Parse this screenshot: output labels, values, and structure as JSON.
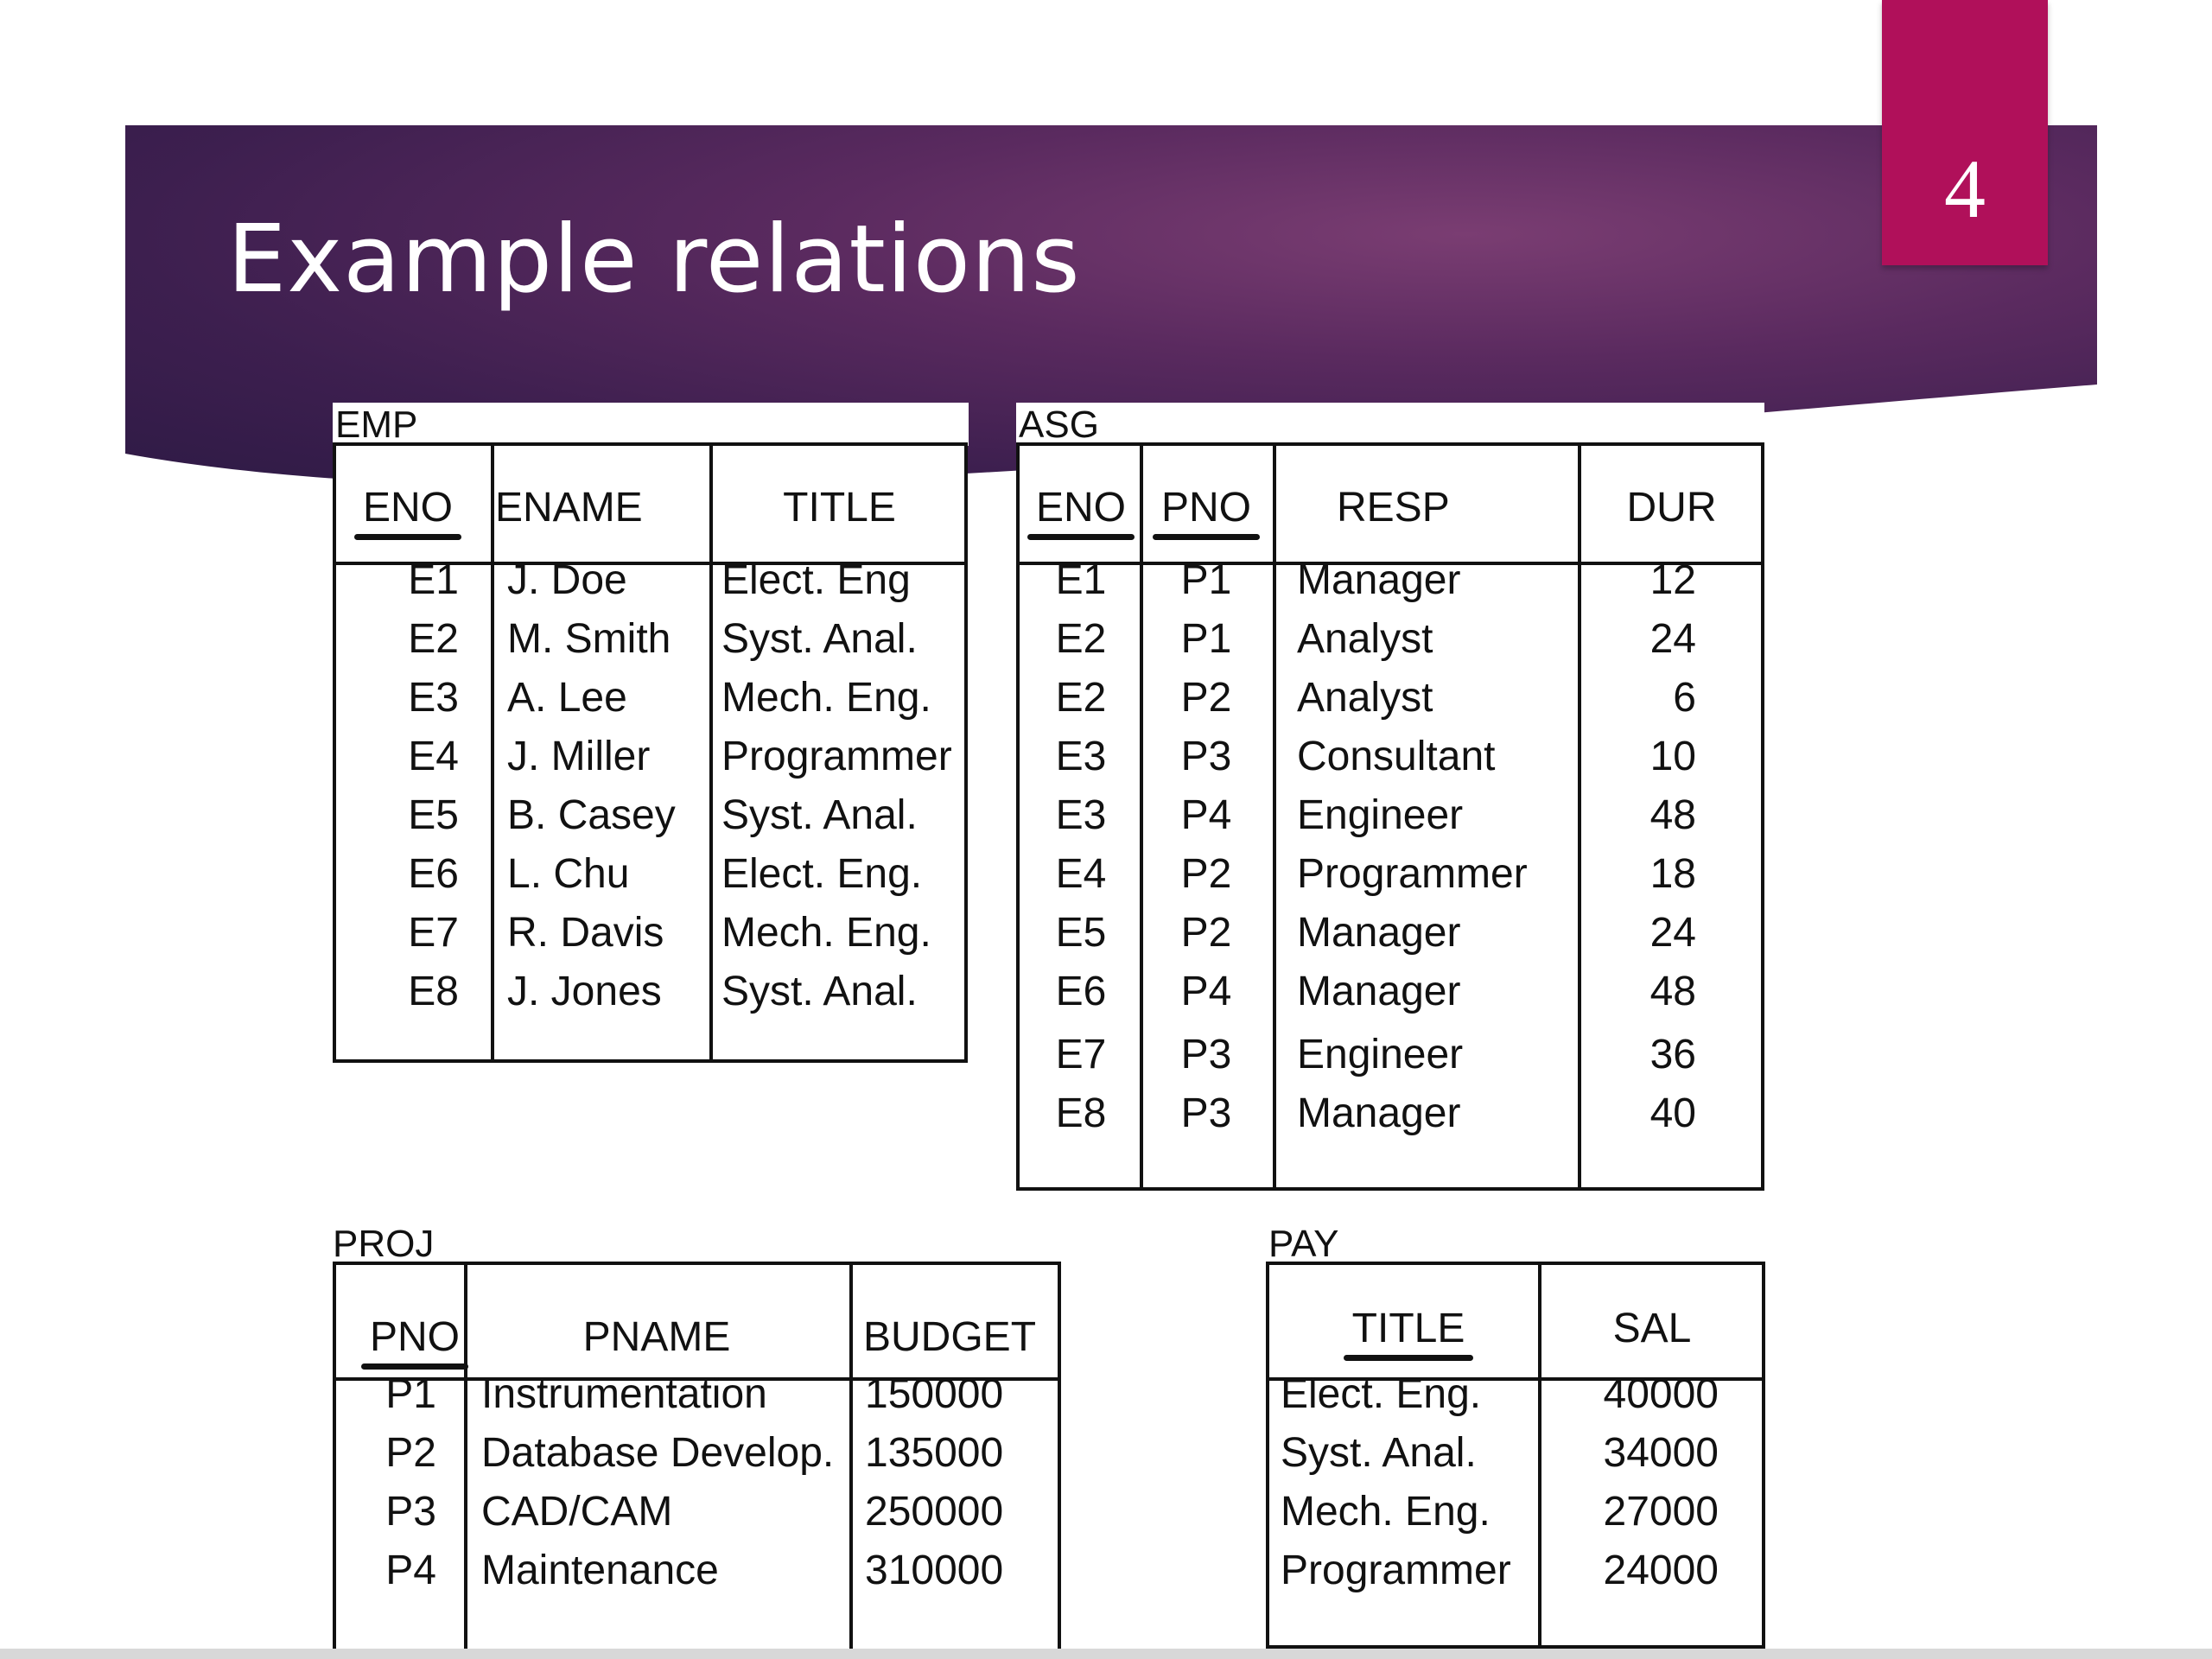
{
  "slide": {
    "title": "Example relations",
    "page_number": "4"
  },
  "colors": {
    "banner": "#4a2459",
    "badge": "#b0105a"
  },
  "emp": {
    "label": "EMP",
    "headers": [
      "ENO",
      "ENAME",
      "TITLE"
    ],
    "rows": [
      [
        "E1",
        "J. Doe",
        "Elect. Eng"
      ],
      [
        "E2",
        "M. Smith",
        "Syst. Anal."
      ],
      [
        "E3",
        "A. Lee",
        "Mech. Eng."
      ],
      [
        "E4",
        "J. Miller",
        "Programmer"
      ],
      [
        "E5",
        "B. Casey",
        "Syst. Anal."
      ],
      [
        "E6",
        "L. Chu",
        "Elect. Eng."
      ],
      [
        "E7",
        "R. Davis",
        "Mech. Eng."
      ],
      [
        "E8",
        "J. Jones",
        "Syst. Anal."
      ]
    ]
  },
  "asg": {
    "label": "ASG",
    "headers": [
      "ENO",
      "PNO",
      "RESP",
      "DUR"
    ],
    "rows": [
      [
        "E1",
        "P1",
        "Manager",
        "12"
      ],
      [
        "E2",
        "P1",
        "Analyst",
        "24"
      ],
      [
        "E2",
        "P2",
        "Analyst",
        "6"
      ],
      [
        "E3",
        "P3",
        "Consultant",
        "10"
      ],
      [
        "E3",
        "P4",
        "Engineer",
        "48"
      ],
      [
        "E4",
        "P2",
        "Programmer",
        "18"
      ],
      [
        "E5",
        "P2",
        "Manager",
        "24"
      ],
      [
        "E6",
        "P4",
        "Manager",
        "48"
      ],
      [
        "E7",
        "P3",
        "Engineer",
        "36"
      ],
      [
        "E8",
        "P3",
        "Manager",
        "40"
      ]
    ]
  },
  "proj": {
    "label": "PROJ",
    "headers": [
      "PNO",
      "PNAME",
      "BUDGET"
    ],
    "rows": [
      [
        "P1",
        "Instrumentation",
        "150000"
      ],
      [
        "P2",
        "Database Develop.",
        "135000"
      ],
      [
        "P3",
        "CAD/CAM",
        "250000"
      ],
      [
        "P4",
        "Maintenance",
        "310000"
      ]
    ]
  },
  "pay": {
    "label": "PAY",
    "headers": [
      "TITLE",
      "SAL"
    ],
    "rows": [
      [
        "Elect. Eng.",
        "40000"
      ],
      [
        "Syst. Anal.",
        "34000"
      ],
      [
        "Mech. Eng.",
        "27000"
      ],
      [
        "Programmer",
        "24000"
      ]
    ]
  }
}
